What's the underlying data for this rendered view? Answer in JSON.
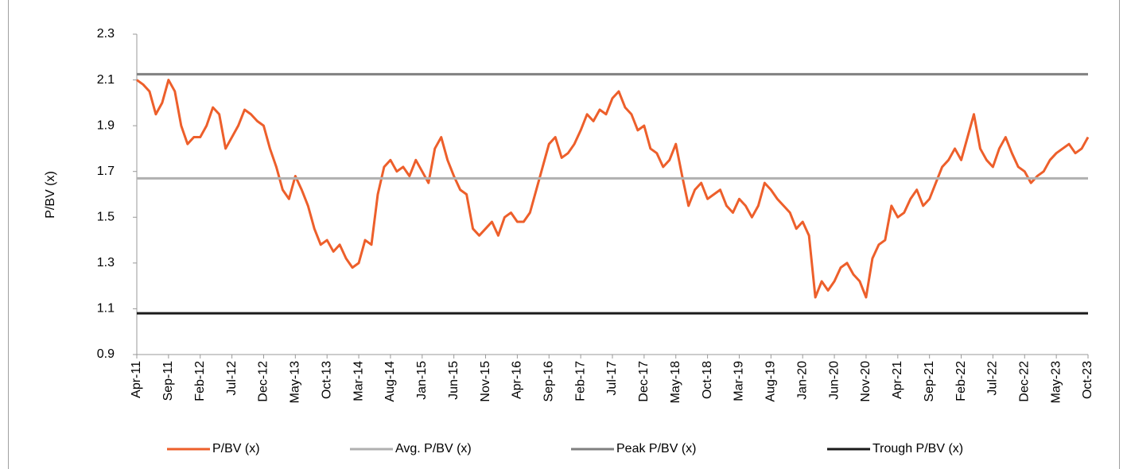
{
  "chart_data": {
    "type": "line",
    "y_label": "P/BV (x)",
    "categories": [
      "Apr-11",
      null,
      null,
      null,
      null,
      "Sep-11",
      null,
      null,
      null,
      null,
      "Feb-12",
      null,
      null,
      null,
      null,
      "Jul-12",
      null,
      null,
      null,
      null,
      "Dec-12",
      null,
      null,
      null,
      null,
      "May-13",
      null,
      null,
      null,
      null,
      "Oct-13",
      null,
      null,
      null,
      null,
      "Mar-14",
      null,
      null,
      null,
      null,
      "Aug-14",
      null,
      null,
      null,
      null,
      "Jan-15",
      null,
      null,
      null,
      null,
      "Jun-15",
      null,
      null,
      null,
      null,
      "Nov-15",
      null,
      null,
      null,
      null,
      "Apr-16",
      null,
      null,
      null,
      null,
      "Sep-16",
      null,
      null,
      null,
      null,
      "Feb-17",
      null,
      null,
      null,
      null,
      "Jul-17",
      null,
      null,
      null,
      null,
      "Dec-17",
      null,
      null,
      null,
      null,
      "May-18",
      null,
      null,
      null,
      null,
      "Oct-18",
      null,
      null,
      null,
      null,
      "Mar-19",
      null,
      null,
      null,
      null,
      "Aug-19",
      null,
      null,
      null,
      null,
      "Jan-20",
      null,
      null,
      null,
      null,
      "Jun-20",
      null,
      null,
      null,
      null,
      "Nov-20",
      null,
      null,
      null,
      null,
      "Apr-21",
      null,
      null,
      null,
      null,
      "Sep-21",
      null,
      null,
      null,
      null,
      "Feb-22",
      null,
      null,
      null,
      null,
      "Jul-22",
      null,
      null,
      null,
      null,
      "Dec-22",
      null,
      null,
      null,
      null,
      "May-23",
      null,
      null,
      null,
      null,
      "Oct-23"
    ],
    "series": [
      {
        "name": "P/BV (x)",
        "color": "#ED5F2B",
        "values": [
          2.1,
          2.08,
          2.05,
          1.95,
          2.0,
          2.1,
          2.05,
          1.9,
          1.82,
          1.85,
          1.85,
          1.9,
          1.98,
          1.95,
          1.8,
          1.85,
          1.9,
          1.97,
          1.95,
          1.92,
          1.9,
          1.8,
          1.72,
          1.62,
          1.58,
          1.68,
          1.62,
          1.55,
          1.45,
          1.38,
          1.4,
          1.35,
          1.38,
          1.32,
          1.28,
          1.3,
          1.4,
          1.38,
          1.6,
          1.72,
          1.75,
          1.7,
          1.72,
          1.68,
          1.75,
          1.7,
          1.65,
          1.8,
          1.85,
          1.75,
          1.68,
          1.62,
          1.6,
          1.45,
          1.42,
          1.45,
          1.48,
          1.42,
          1.5,
          1.52,
          1.48,
          1.48,
          1.52,
          1.62,
          1.72,
          1.82,
          1.85,
          1.76,
          1.78,
          1.82,
          1.88,
          1.95,
          1.92,
          1.97,
          1.95,
          2.02,
          2.05,
          1.98,
          1.95,
          1.88,
          1.9,
          1.8,
          1.78,
          1.72,
          1.75,
          1.82,
          1.68,
          1.55,
          1.62,
          1.65,
          1.58,
          1.6,
          1.62,
          1.55,
          1.52,
          1.58,
          1.55,
          1.5,
          1.55,
          1.65,
          1.62,
          1.58,
          1.55,
          1.52,
          1.45,
          1.48,
          1.42,
          1.15,
          1.22,
          1.18,
          1.22,
          1.28,
          1.3,
          1.25,
          1.22,
          1.15,
          1.32,
          1.38,
          1.4,
          1.55,
          1.5,
          1.52,
          1.58,
          1.62,
          1.55,
          1.58,
          1.65,
          1.72,
          1.75,
          1.8,
          1.75,
          1.85,
          1.95,
          1.8,
          1.75,
          1.72,
          1.8,
          1.85,
          1.78,
          1.72,
          1.7,
          1.65,
          1.68,
          1.7,
          1.75,
          1.78,
          1.8,
          1.82,
          1.78,
          1.8,
          1.85
        ]
      },
      {
        "name": "Avg. P/BV (x)",
        "color": "#B0B0B0",
        "value": 1.67
      },
      {
        "name": "Peak P/BV (x)",
        "color": "#808080",
        "value": 2.125
      },
      {
        "name": "Trough P/BV (x)",
        "color": "#1A1A1A",
        "value": 1.08
      }
    ],
    "ylim": [
      0.9,
      2.3
    ],
    "yticks": [
      0.9,
      1.1,
      1.3,
      1.5,
      1.7,
      1.9,
      2.1,
      2.3
    ]
  }
}
